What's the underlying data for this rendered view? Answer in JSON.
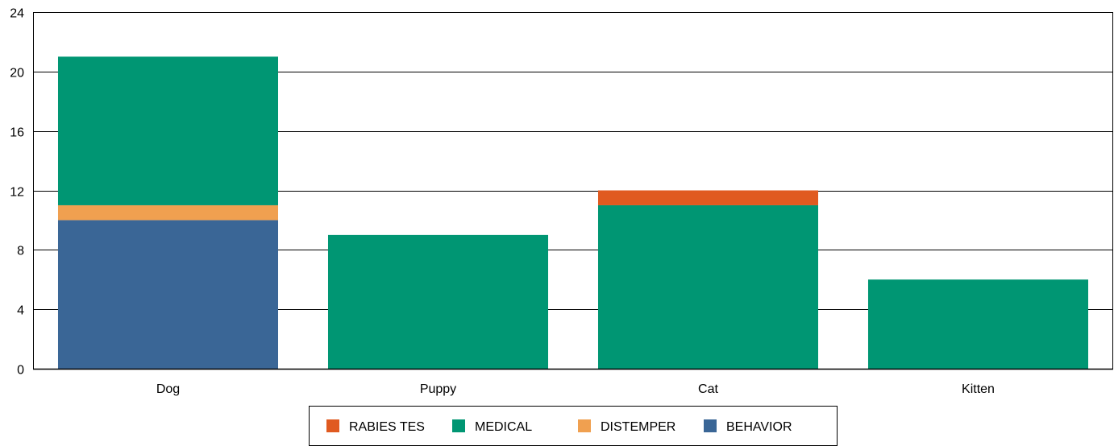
{
  "chart_data": {
    "type": "bar",
    "stacked": true,
    "title": "",
    "xlabel": "",
    "ylabel": "",
    "categories": [
      "Dog",
      "Puppy",
      "Cat",
      "Kitten"
    ],
    "ylim": [
      0,
      24
    ],
    "yticks": [
      0,
      4,
      8,
      12,
      16,
      20,
      24
    ],
    "grid": true,
    "legend_position": "bottom",
    "series": [
      {
        "name": "BEHAVIOR",
        "color": "#3a6696",
        "values": [
          10,
          0,
          0,
          0
        ]
      },
      {
        "name": "DISTEMPER",
        "color": "#f0a050",
        "values": [
          1,
          0,
          0,
          0
        ]
      },
      {
        "name": "MEDICAL",
        "color": "#009673",
        "values": [
          10,
          9,
          11,
          6
        ]
      },
      {
        "name": "RABIES TES",
        "color": "#e05a20",
        "values": [
          0,
          0,
          1,
          0
        ]
      }
    ],
    "legend_order": [
      "RABIES TES",
      "MEDICAL",
      "DISTEMPER",
      "BEHAVIOR"
    ]
  }
}
